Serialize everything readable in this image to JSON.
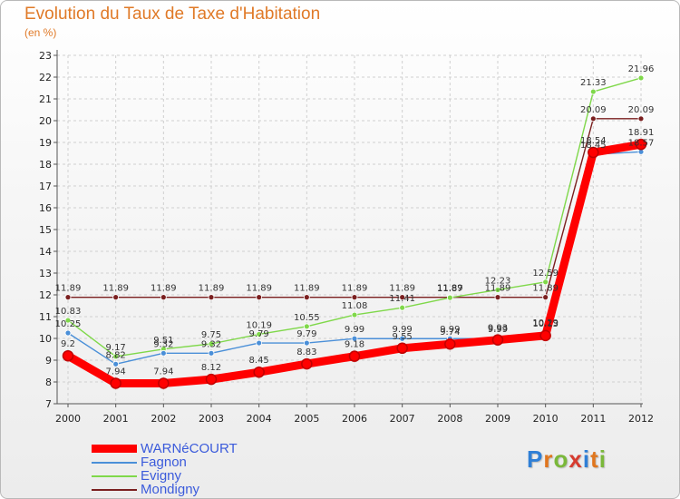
{
  "chart_data": {
    "type": "line",
    "title": "Evolution du Taux de Taxe d'Habitation",
    "subtitle": "(en %)",
    "xlabel": "",
    "ylabel": "",
    "ylim": [
      7,
      23
    ],
    "y_ticks": [
      7,
      8,
      9,
      10,
      11,
      12,
      13,
      14,
      15,
      16,
      17,
      18,
      19,
      20,
      21,
      22,
      23
    ],
    "categories": [
      "2000",
      "2001",
      "2002",
      "2003",
      "2004",
      "2005",
      "2006",
      "2007",
      "2008",
      "2009",
      "2010",
      "2011",
      "2012"
    ],
    "grid": true,
    "legend_position": "bottom-left",
    "series": [
      {
        "name": "Mondigny",
        "color": "#7a1f1f",
        "values": [
          11.89,
          11.89,
          11.89,
          11.89,
          11.89,
          11.89,
          11.89,
          11.89,
          11.89,
          11.89,
          11.89,
          20.09,
          20.09
        ],
        "labels": [
          "11.89",
          "11.89",
          "11.89",
          "11.89",
          "11.89",
          "11.89",
          "11.89",
          "11.89",
          "11.89",
          "11.89",
          "11.89",
          "20.09",
          "20.09"
        ]
      },
      {
        "name": "Evigny",
        "color": "#7fd84a",
        "values": [
          10.83,
          9.17,
          9.51,
          9.75,
          10.19,
          10.55,
          11.08,
          11.41,
          11.87,
          12.23,
          12.59,
          21.33,
          21.96
        ],
        "labels": [
          "10.83",
          "9.17",
          "9.51",
          "9.75",
          "10.19",
          "10.55",
          "11.08",
          "11.41",
          "11.87",
          "12.23",
          "12.59",
          "21.33",
          "21.96"
        ]
      },
      {
        "name": "Fagnon",
        "color": "#4a8fd8",
        "values": [
          10.25,
          8.82,
          9.32,
          9.32,
          9.79,
          9.79,
          9.99,
          9.99,
          9.99,
          9.99,
          10.29,
          18.45,
          18.57
        ],
        "labels": [
          "10.25",
          "8.82",
          "9.32",
          "9.32",
          "9.79",
          "9.79",
          "9.99",
          "9.99",
          "9.99",
          "9.99",
          "10.29",
          "18.45",
          "18.57"
        ]
      },
      {
        "name": "WARNéCOURT",
        "color": "#ff0000",
        "values": [
          9.2,
          7.94,
          7.94,
          8.12,
          8.45,
          8.83,
          9.18,
          9.55,
          9.74,
          9.93,
          10.13,
          18.54,
          18.91
        ],
        "labels": [
          "9.2",
          "7.94",
          "7.94",
          "8.12",
          "8.45",
          "8.83",
          "9.18",
          "9.55",
          "9.74",
          "9.93",
          "10.13",
          "18.54",
          "18.91"
        ]
      }
    ]
  },
  "legend": {
    "items": [
      {
        "label": "WARNéCOURT",
        "color": "#ff0000",
        "thick": true
      },
      {
        "label": "Fagnon",
        "color": "#4a8fd8",
        "thick": false
      },
      {
        "label": "Evigny",
        "color": "#7fd84a",
        "thick": false
      },
      {
        "label": "Mondigny",
        "color": "#7a1f1f",
        "thick": false
      }
    ]
  },
  "brand": {
    "text": "Proxiti",
    "colors": [
      "#2f7fd6",
      "#e0761e",
      "#7ab83a",
      "#d63b2f",
      "#2f7fd6",
      "#e0761e",
      "#7ab83a"
    ]
  }
}
